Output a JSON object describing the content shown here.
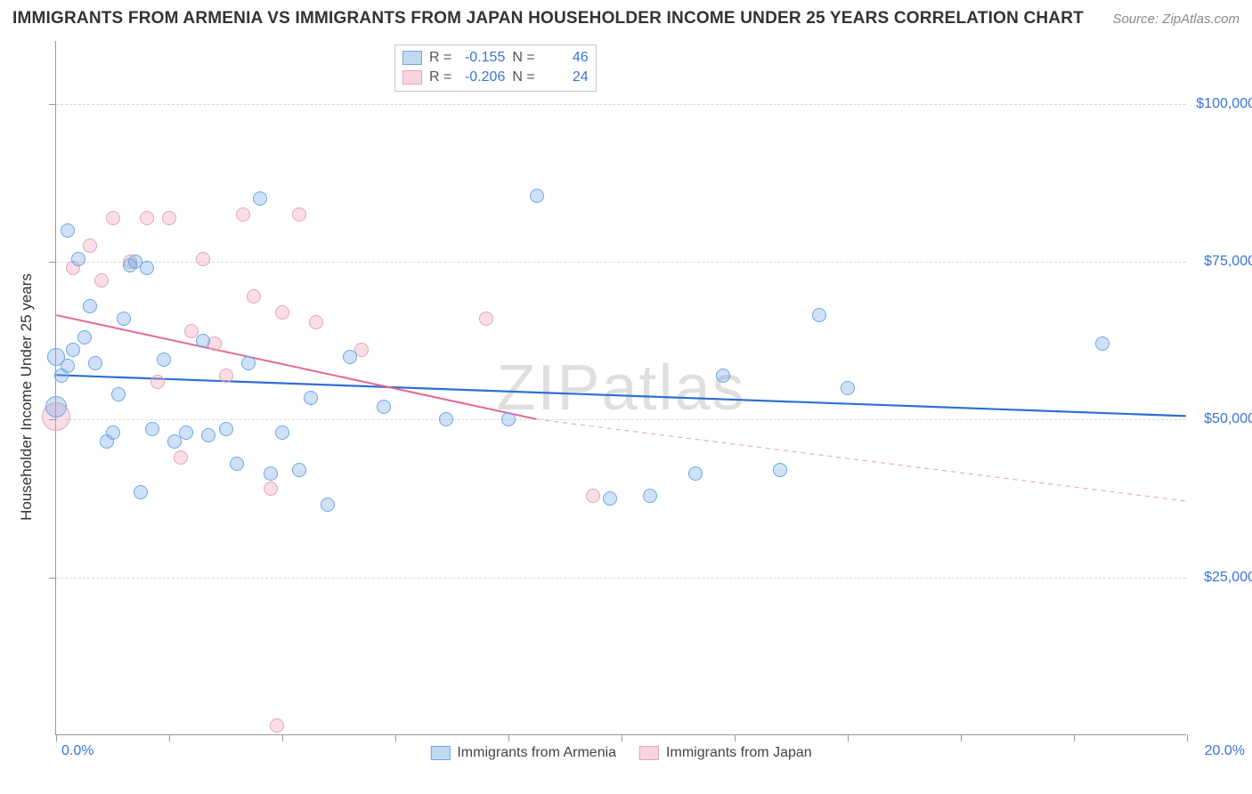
{
  "title": "IMMIGRANTS FROM ARMENIA VS IMMIGRANTS FROM JAPAN HOUSEHOLDER INCOME UNDER 25 YEARS CORRELATION CHART",
  "source": "Source: ZipAtlas.com",
  "watermark": "ZIPatlas",
  "y_axis_title": "Householder Income Under 25 years",
  "chart": {
    "type": "scatter",
    "xlim": [
      0,
      20
    ],
    "ylim": [
      0,
      110000
    ],
    "x_tick_labels": {
      "min": "0.0%",
      "max": "20.0%"
    },
    "x_ticks_at": [
      0,
      2,
      4,
      6,
      8,
      10,
      12,
      14,
      16,
      18,
      20
    ],
    "y_ticks": [
      {
        "v": 25000,
        "label": "$25,000"
      },
      {
        "v": 50000,
        "label": "$50,000"
      },
      {
        "v": 75000,
        "label": "$75,000"
      },
      {
        "v": 100000,
        "label": "$100,000"
      }
    ],
    "background_color": "#ffffff",
    "grid_color": "#e0e0e0",
    "marker_radius": 8,
    "series": {
      "armenia": {
        "label": "Immigrants from Armenia",
        "fill": "rgba(120,170,230,0.35)",
        "stroke": "#6aa8e8",
        "r_value": "-0.155",
        "n_value": "46",
        "trend": {
          "x1": 0,
          "y1": 57000,
          "x2": 20,
          "y2": 50500,
          "color": "#2f6fd1",
          "width": 2.2,
          "dash": "none"
        },
        "points": [
          [
            0.0,
            52000,
            12
          ],
          [
            0.0,
            60000,
            10
          ],
          [
            0.1,
            57000,
            8
          ],
          [
            0.2,
            58500,
            8
          ],
          [
            0.3,
            61000,
            8
          ],
          [
            0.2,
            80000,
            8
          ],
          [
            0.4,
            75500,
            8
          ],
          [
            0.6,
            68000,
            8
          ],
          [
            0.5,
            63000,
            8
          ],
          [
            0.7,
            59000,
            8
          ],
          [
            0.9,
            46500,
            8
          ],
          [
            1.0,
            48000,
            8
          ],
          [
            1.1,
            54000,
            8
          ],
          [
            1.2,
            66000,
            8
          ],
          [
            1.3,
            74500,
            8
          ],
          [
            1.4,
            75000,
            8
          ],
          [
            1.5,
            38500,
            8
          ],
          [
            1.6,
            74000,
            8
          ],
          [
            1.7,
            48500,
            8
          ],
          [
            1.9,
            59500,
            8
          ],
          [
            2.1,
            46500,
            8
          ],
          [
            2.3,
            48000,
            8
          ],
          [
            2.6,
            62500,
            8
          ],
          [
            2.7,
            47500,
            8
          ],
          [
            3.0,
            48500,
            8
          ],
          [
            3.2,
            43000,
            8
          ],
          [
            3.4,
            59000,
            8
          ],
          [
            3.6,
            85000,
            8
          ],
          [
            3.8,
            41500,
            8
          ],
          [
            4.0,
            48000,
            8
          ],
          [
            4.3,
            42000,
            8
          ],
          [
            4.5,
            53500,
            8
          ],
          [
            4.8,
            36500,
            8
          ],
          [
            5.2,
            60000,
            8
          ],
          [
            5.8,
            52000,
            8
          ],
          [
            6.9,
            50000,
            8
          ],
          [
            8.0,
            50000,
            8
          ],
          [
            9.8,
            37500,
            8
          ],
          [
            10.5,
            38000,
            8
          ],
          [
            11.3,
            41500,
            8
          ],
          [
            11.8,
            57000,
            8
          ],
          [
            12.8,
            42000,
            8
          ],
          [
            13.5,
            66500,
            8
          ],
          [
            14.0,
            55000,
            8
          ],
          [
            18.5,
            62000,
            8
          ],
          [
            8.5,
            85500,
            8
          ]
        ]
      },
      "japan": {
        "label": "Immigrants from Japan",
        "fill": "rgba(240,160,185,0.35)",
        "stroke": "#eba3b9",
        "r_value": "-0.206",
        "n_value": "24",
        "trend_solid": {
          "x1": 0,
          "y1": 66500,
          "x2": 8.5,
          "y2": 50000,
          "color": "#e56a8f",
          "width": 2,
          "dash": "none"
        },
        "trend_dash": {
          "x1": 8.5,
          "y1": 50000,
          "x2": 20,
          "y2": 37000,
          "color": "#e9a8bb",
          "width": 1.2,
          "dash": "5,5"
        },
        "points": [
          [
            0.0,
            50500,
            16
          ],
          [
            0.3,
            74000,
            8
          ],
          [
            0.6,
            77500,
            8
          ],
          [
            0.8,
            72000,
            8
          ],
          [
            1.0,
            82000,
            8
          ],
          [
            1.3,
            75000,
            8
          ],
          [
            1.6,
            82000,
            8
          ],
          [
            1.8,
            56000,
            8
          ],
          [
            2.0,
            82000,
            8
          ],
          [
            2.2,
            44000,
            8
          ],
          [
            2.4,
            64000,
            8
          ],
          [
            2.6,
            75500,
            8
          ],
          [
            2.8,
            62000,
            8
          ],
          [
            3.0,
            57000,
            8
          ],
          [
            3.3,
            82500,
            8
          ],
          [
            3.5,
            69500,
            8
          ],
          [
            3.8,
            39000,
            8
          ],
          [
            4.0,
            67000,
            8
          ],
          [
            4.3,
            82500,
            8
          ],
          [
            4.6,
            65500,
            8
          ],
          [
            5.4,
            61000,
            8
          ],
          [
            7.6,
            66000,
            8
          ],
          [
            9.5,
            38000,
            8
          ],
          [
            3.9,
            1500,
            8
          ]
        ]
      }
    }
  },
  "legend_stats_labels": {
    "R": "R =",
    "N": "N ="
  }
}
